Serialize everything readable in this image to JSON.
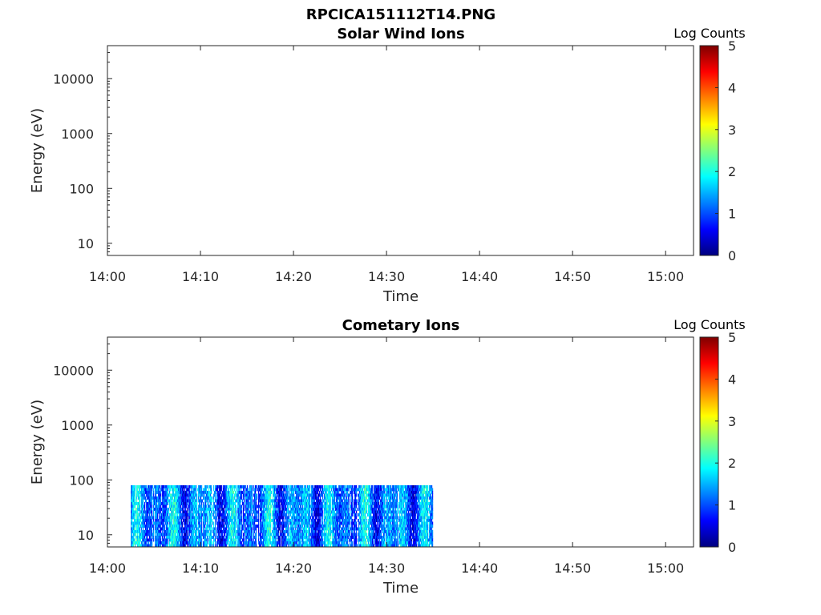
{
  "figure": {
    "title": "RPCICA151112T14.PNG"
  },
  "chart_data": [
    {
      "type": "heatmap",
      "title": "Solar Wind Ions",
      "xlabel": "Time",
      "ylabel": "Energy (eV)",
      "x_ticks": [
        "14:00",
        "14:10",
        "14:20",
        "14:30",
        "14:40",
        "14:50",
        "15:00"
      ],
      "xlim": [
        "14:00",
        "15:03"
      ],
      "y_scale": "log",
      "y_ticks": [
        {
          "value": 10,
          "label": "10"
        },
        {
          "value": 100,
          "label": "100"
        },
        {
          "value": 1000,
          "label": "1000"
        },
        {
          "value": 10000,
          "label": "10000"
        }
      ],
      "ylim": [
        6,
        40000
      ],
      "colorbar": {
        "label": "Log Counts",
        "range": [
          0,
          5
        ],
        "ticks": [
          "0",
          "1",
          "2",
          "3",
          "4",
          "5"
        ],
        "colormap": "jet"
      },
      "data_region": null
    },
    {
      "type": "heatmap",
      "title": "Cometary Ions",
      "xlabel": "Time",
      "ylabel": "Energy (eV)",
      "x_ticks": [
        "14:00",
        "14:10",
        "14:20",
        "14:30",
        "14:40",
        "14:50",
        "15:00"
      ],
      "xlim": [
        "14:00",
        "15:03"
      ],
      "y_scale": "log",
      "y_ticks": [
        {
          "value": 10,
          "label": "10"
        },
        {
          "value": 100,
          "label": "100"
        },
        {
          "value": 1000,
          "label": "1000"
        },
        {
          "value": 10000,
          "label": "10000"
        }
      ],
      "ylim": [
        6,
        40000
      ],
      "colorbar": {
        "label": "Log Counts",
        "range": [
          0,
          5
        ],
        "ticks": [
          "0",
          "1",
          "2",
          "3",
          "4",
          "5"
        ],
        "colormap": "jet"
      },
      "data_region": {
        "time_start": "14:02.5",
        "time_end": "14:35",
        "energy_min": 6,
        "energy_max": 80,
        "typical_log_counts": [
          0.5,
          2.0
        ]
      }
    }
  ]
}
